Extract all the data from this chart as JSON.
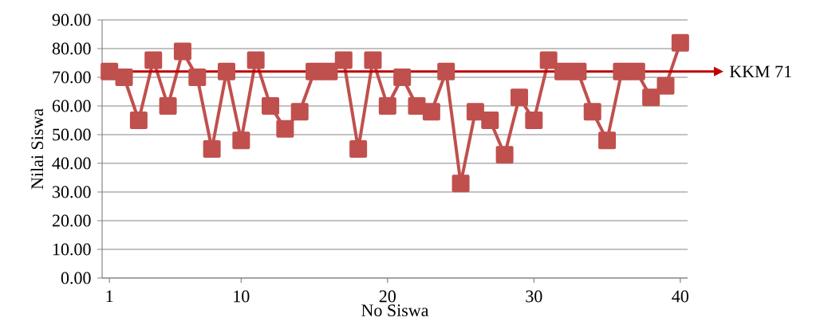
{
  "chart_data": {
    "type": "line",
    "xlabel": "No Siswa",
    "ylabel": "Nilai Siswa",
    "x": [
      1,
      2,
      3,
      4,
      5,
      6,
      7,
      8,
      9,
      10,
      11,
      12,
      13,
      14,
      15,
      16,
      17,
      18,
      19,
      20,
      21,
      22,
      23,
      24,
      25,
      26,
      27,
      28,
      29,
      30,
      31,
      32,
      33,
      34,
      35,
      36,
      37,
      38,
      39,
      40
    ],
    "series": [
      {
        "color": "#c0504d",
        "values": [
          72,
          70,
          55,
          76,
          60,
          79,
          70,
          45,
          72,
          48,
          76,
          60,
          52,
          58,
          72,
          72,
          76,
          45,
          76,
          60,
          70,
          60,
          58,
          72,
          33,
          58,
          55,
          43,
          63,
          55,
          76,
          72,
          72,
          58,
          48,
          72,
          72,
          63,
          67,
          82
        ]
      }
    ],
    "xlim": [
      0.5,
      40.5
    ],
    "xticks": [
      1,
      10,
      20,
      30,
      40
    ],
    "ylim": [
      0,
      90
    ],
    "yticks": [
      {
        "value": 0,
        "label": "0.00"
      },
      {
        "value": 10,
        "label": "10.00"
      },
      {
        "value": 20,
        "label": "20.00"
      },
      {
        "value": 30,
        "label": "30.00"
      },
      {
        "value": 40,
        "label": "40.00"
      },
      {
        "value": 50,
        "label": "50.00"
      },
      {
        "value": 60,
        "label": "60.00"
      },
      {
        "value": 70,
        "label": "70.00"
      },
      {
        "value": 80,
        "label": "80.00"
      },
      {
        "value": 90,
        "label": "90.00"
      }
    ],
    "grid": "y",
    "marker": "square",
    "line_style": "solid",
    "ref_lines": [
      {
        "axis": "y",
        "value": 72,
        "label": "KKM 71",
        "color": "#c00000"
      }
    ]
  }
}
